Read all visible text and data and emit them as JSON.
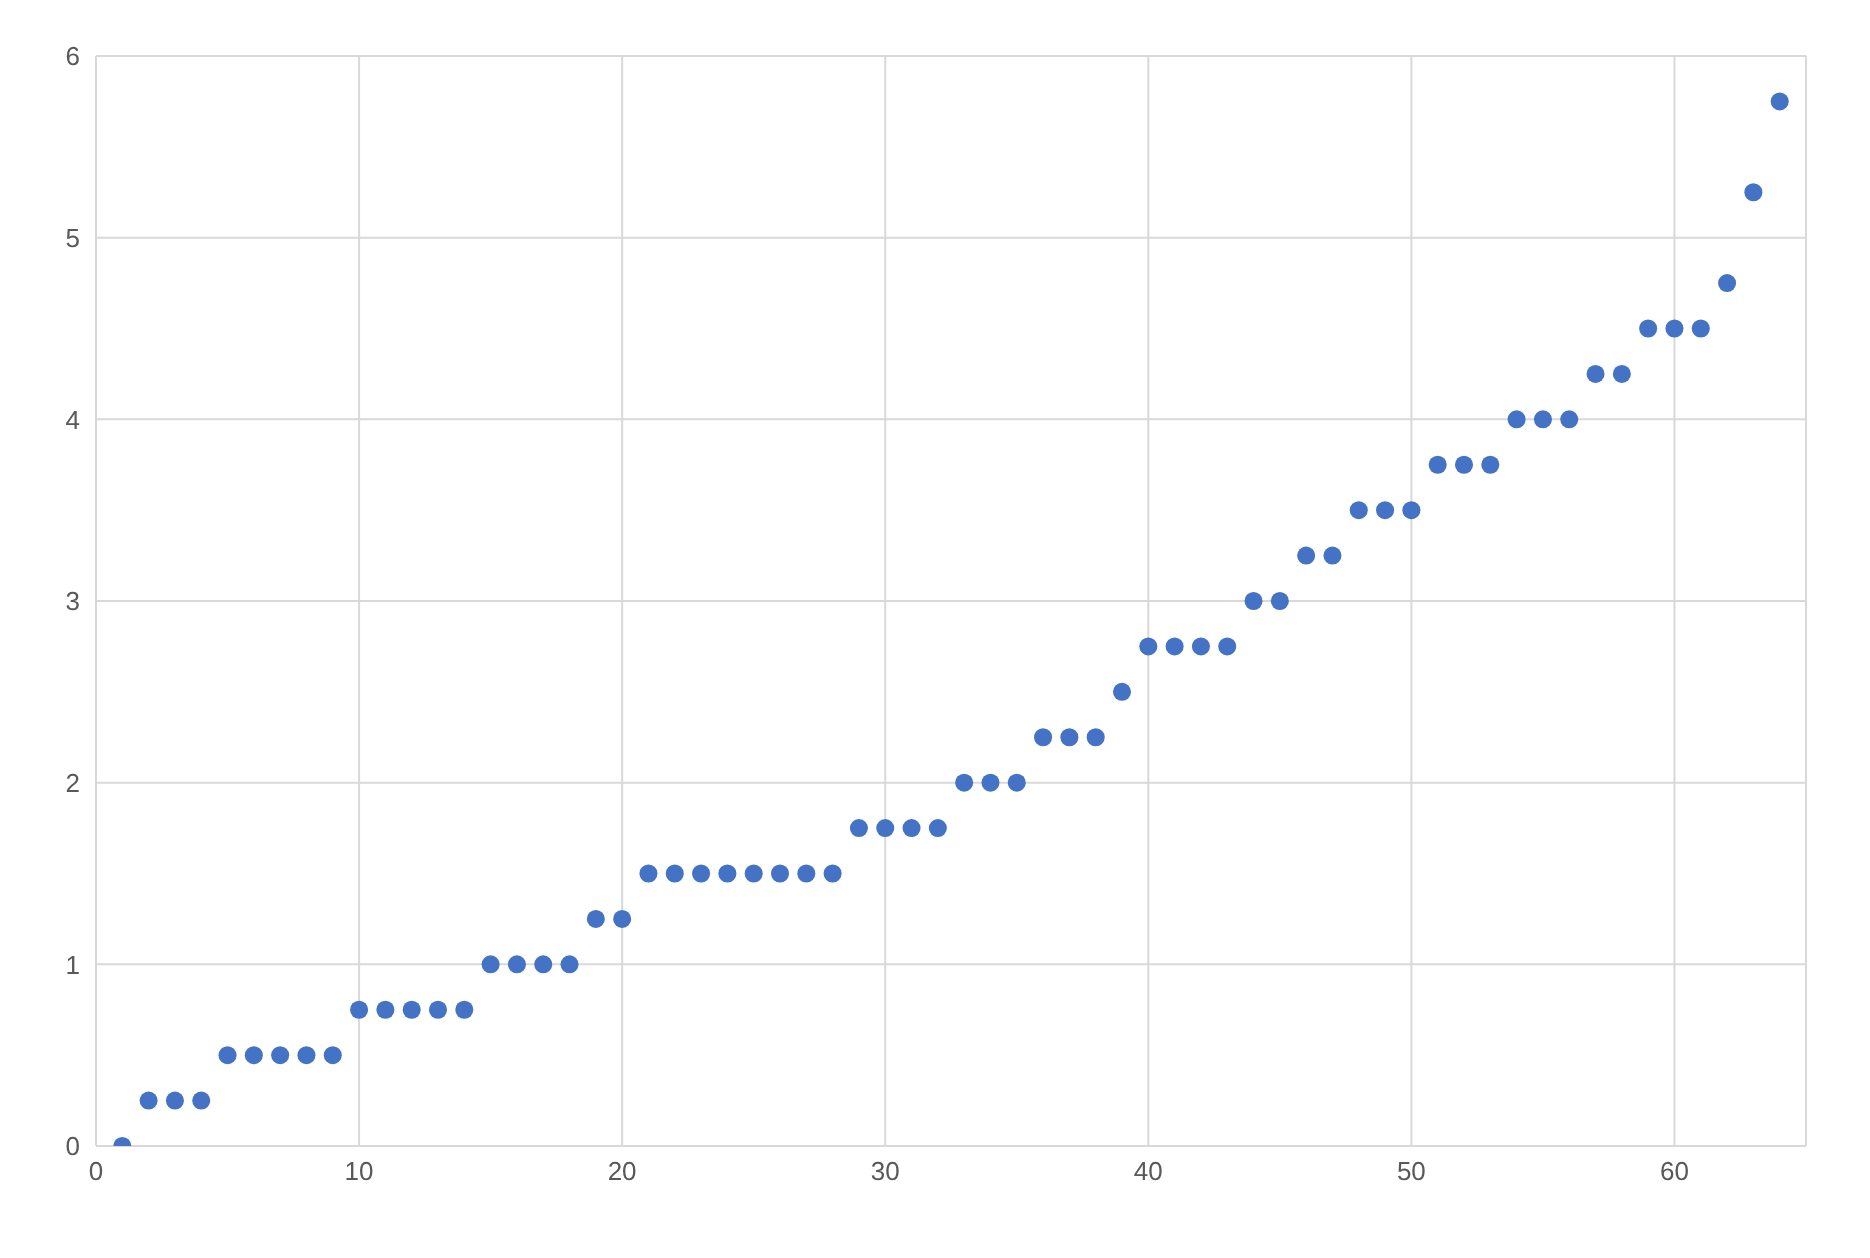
{
  "chart_data": {
    "type": "scatter",
    "x": [
      1,
      2,
      3,
      4,
      5,
      6,
      7,
      8,
      9,
      10,
      11,
      12,
      13,
      14,
      15,
      16,
      17,
      18,
      19,
      20,
      21,
      22,
      23,
      24,
      25,
      26,
      27,
      28,
      29,
      30,
      31,
      32,
      33,
      34,
      35,
      36,
      37,
      38,
      39,
      40,
      41,
      42,
      43,
      44,
      45,
      46,
      47,
      48,
      49,
      50,
      51,
      52,
      53,
      54,
      55,
      56,
      57,
      58,
      59,
      60,
      61,
      62,
      63,
      64
    ],
    "values": [
      0,
      0.25,
      0.25,
      0.25,
      0.5,
      0.5,
      0.5,
      0.5,
      0.5,
      0.75,
      0.75,
      0.75,
      0.75,
      0.75,
      1,
      1,
      1,
      1,
      1.25,
      1.25,
      1.5,
      1.5,
      1.5,
      1.5,
      1.5,
      1.5,
      1.5,
      1.5,
      1.75,
      1.75,
      1.75,
      1.75,
      2,
      2,
      2,
      2.25,
      2.25,
      2.25,
      2.5,
      2.75,
      2.75,
      2.75,
      2.75,
      3,
      3,
      3.25,
      3.25,
      3.5,
      3.5,
      3.5,
      3.75,
      3.75,
      3.75,
      4,
      4,
      4,
      4.25,
      4.25,
      4.5,
      4.5,
      4.5,
      4.75,
      5.25,
      5.75
    ],
    "color": "#4472c4",
    "marker": "circle",
    "xlim": [
      0,
      65
    ],
    "xticks": [
      0,
      10,
      20,
      30,
      40,
      50,
      60
    ],
    "ylim": [
      0,
      6
    ],
    "yticks": [
      0,
      1,
      2,
      3,
      4,
      5,
      6
    ],
    "grid": true
  }
}
